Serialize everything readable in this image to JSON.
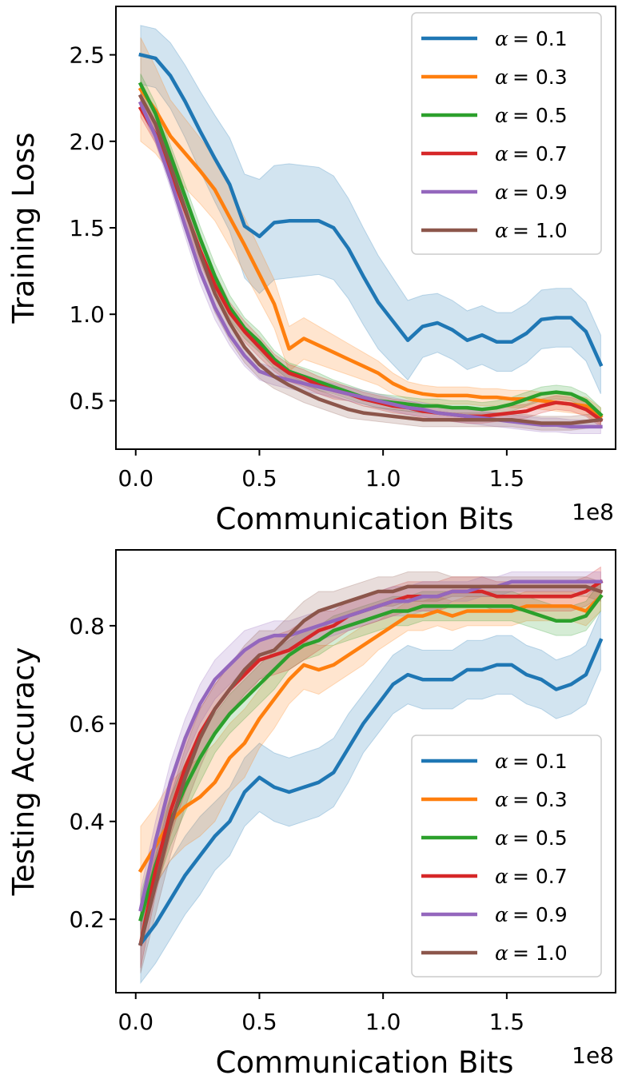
{
  "chart_data": [
    {
      "type": "line",
      "xlabel": "Communication Bits",
      "ylabel": "Training Loss",
      "x_exponent_label": "1e8",
      "xlim": [
        -0.08,
        1.94
      ],
      "ylim": [
        0.22,
        2.78
      ],
      "xticks": [
        0.0,
        0.5,
        1.0,
        1.5
      ],
      "xtick_labels": [
        "0.0",
        "0.5",
        "1.0",
        "1.5"
      ],
      "yticks": [
        0.5,
        1.0,
        1.5,
        2.0,
        2.5
      ],
      "ytick_labels": [
        "0.5",
        "1.0",
        "1.5",
        "2.0",
        "2.5"
      ],
      "legend_position": "upper right",
      "x": [
        0.02,
        0.08,
        0.14,
        0.2,
        0.26,
        0.32,
        0.38,
        0.44,
        0.5,
        0.56,
        0.62,
        0.68,
        0.74,
        0.8,
        0.86,
        0.92,
        0.98,
        1.04,
        1.1,
        1.16,
        1.22,
        1.28,
        1.34,
        1.4,
        1.46,
        1.52,
        1.58,
        1.64,
        1.7,
        1.76,
        1.82,
        1.88
      ],
      "series": [
        {
          "name": "α = 0.1",
          "symbol": "α",
          "label": "= 0.1",
          "color": "#1f77b4",
          "values": [
            2.5,
            2.48,
            2.38,
            2.23,
            2.06,
            1.9,
            1.75,
            1.51,
            1.45,
            1.53,
            1.54,
            1.54,
            1.54,
            1.5,
            1.38,
            1.22,
            1.07,
            0.96,
            0.85,
            0.93,
            0.95,
            0.91,
            0.85,
            0.88,
            0.84,
            0.84,
            0.89,
            0.97,
            0.98,
            0.98,
            0.9,
            0.71
          ],
          "band": [
            0.17,
            0.17,
            0.19,
            0.21,
            0.23,
            0.25,
            0.27,
            0.3,
            0.33,
            0.33,
            0.33,
            0.32,
            0.31,
            0.3,
            0.29,
            0.28,
            0.27,
            0.25,
            0.23,
            0.18,
            0.17,
            0.17,
            0.17,
            0.17,
            0.17,
            0.17,
            0.17,
            0.17,
            0.17,
            0.17,
            0.17,
            0.17
          ]
        },
        {
          "name": "α = 0.3",
          "symbol": "α",
          "label": "= 0.3",
          "color": "#ff7f0e",
          "values": [
            2.3,
            2.18,
            2.03,
            1.93,
            1.83,
            1.72,
            1.56,
            1.4,
            1.23,
            1.06,
            0.8,
            0.86,
            0.82,
            0.78,
            0.74,
            0.7,
            0.66,
            0.6,
            0.56,
            0.54,
            0.53,
            0.53,
            0.53,
            0.52,
            0.52,
            0.51,
            0.51,
            0.5,
            0.49,
            0.48,
            0.47,
            0.41
          ],
          "band": [
            0.3,
            0.25,
            0.21,
            0.2,
            0.19,
            0.18,
            0.17,
            0.16,
            0.15,
            0.14,
            0.13,
            0.12,
            0.11,
            0.1,
            0.09,
            0.08,
            0.07,
            0.06,
            0.05,
            0.05,
            0.05,
            0.05,
            0.05,
            0.05,
            0.05,
            0.05,
            0.05,
            0.05,
            0.05,
            0.05,
            0.05,
            0.05
          ]
        },
        {
          "name": "α = 0.5",
          "symbol": "α",
          "label": "= 0.5",
          "color": "#2ca02c",
          "values": [
            2.33,
            2.16,
            1.92,
            1.68,
            1.44,
            1.22,
            1.04,
            0.92,
            0.84,
            0.74,
            0.67,
            0.64,
            0.61,
            0.58,
            0.55,
            0.52,
            0.5,
            0.49,
            0.48,
            0.47,
            0.47,
            0.46,
            0.46,
            0.45,
            0.46,
            0.48,
            0.51,
            0.54,
            0.55,
            0.54,
            0.5,
            0.42
          ],
          "band": [
            0.06,
            0.06,
            0.06,
            0.07,
            0.07,
            0.07,
            0.07,
            0.06,
            0.06,
            0.05,
            0.05,
            0.05,
            0.05,
            0.04,
            0.04,
            0.04,
            0.04,
            0.04,
            0.04,
            0.04,
            0.04,
            0.04,
            0.04,
            0.04,
            0.04,
            0.04,
            0.04,
            0.04,
            0.04,
            0.04,
            0.04,
            0.04
          ]
        },
        {
          "name": "α = 0.7",
          "symbol": "α",
          "label": "= 0.7",
          "color": "#d62728",
          "values": [
            2.19,
            2.04,
            1.83,
            1.6,
            1.37,
            1.17,
            1.01,
            0.9,
            0.81,
            0.72,
            0.66,
            0.63,
            0.59,
            0.56,
            0.54,
            0.51,
            0.49,
            0.47,
            0.46,
            0.44,
            0.43,
            0.42,
            0.41,
            0.41,
            0.42,
            0.43,
            0.44,
            0.47,
            0.49,
            0.48,
            0.45,
            0.39
          ],
          "band": [
            0.05,
            0.05,
            0.06,
            0.06,
            0.07,
            0.07,
            0.06,
            0.06,
            0.06,
            0.05,
            0.05,
            0.05,
            0.05,
            0.05,
            0.04,
            0.04,
            0.04,
            0.04,
            0.04,
            0.04,
            0.04,
            0.04,
            0.04,
            0.04,
            0.04,
            0.04,
            0.04,
            0.04,
            0.04,
            0.04,
            0.04,
            0.04
          ]
        },
        {
          "name": "α = 0.9",
          "symbol": "α",
          "label": "= 0.9",
          "color": "#9467bd",
          "values": [
            2.22,
            2.03,
            1.78,
            1.51,
            1.25,
            1.04,
            0.88,
            0.76,
            0.67,
            0.64,
            0.62,
            0.6,
            0.58,
            0.56,
            0.54,
            0.52,
            0.5,
            0.48,
            0.46,
            0.45,
            0.43,
            0.42,
            0.41,
            0.4,
            0.39,
            0.38,
            0.37,
            0.36,
            0.36,
            0.35,
            0.35,
            0.35
          ],
          "band": [
            0.04,
            0.04,
            0.05,
            0.06,
            0.07,
            0.07,
            0.06,
            0.06,
            0.05,
            0.05,
            0.05,
            0.05,
            0.04,
            0.04,
            0.04,
            0.04,
            0.04,
            0.04,
            0.04,
            0.04,
            0.04,
            0.04,
            0.04,
            0.04,
            0.04,
            0.04,
            0.04,
            0.04,
            0.04,
            0.04,
            0.04,
            0.04
          ]
        },
        {
          "name": "α = 1.0",
          "symbol": "α",
          "label": "= 1.0",
          "color": "#8c564b",
          "values": [
            2.26,
            2.1,
            1.86,
            1.61,
            1.35,
            1.12,
            0.95,
            0.81,
            0.71,
            0.64,
            0.59,
            0.55,
            0.51,
            0.48,
            0.45,
            0.43,
            0.42,
            0.41,
            0.4,
            0.39,
            0.39,
            0.39,
            0.39,
            0.39,
            0.39,
            0.39,
            0.38,
            0.37,
            0.37,
            0.37,
            0.38,
            0.39
          ],
          "band": [
            0.08,
            0.08,
            0.09,
            0.1,
            0.11,
            0.11,
            0.1,
            0.09,
            0.08,
            0.07,
            0.06,
            0.06,
            0.05,
            0.05,
            0.05,
            0.04,
            0.04,
            0.04,
            0.04,
            0.04,
            0.04,
            0.04,
            0.04,
            0.04,
            0.04,
            0.04,
            0.04,
            0.04,
            0.04,
            0.04,
            0.04,
            0.04
          ]
        }
      ]
    },
    {
      "type": "line",
      "xlabel": "Communication Bits",
      "ylabel": "Testing Accuracy",
      "x_exponent_label": "1e8",
      "xlim": [
        -0.08,
        1.94
      ],
      "ylim": [
        0.05,
        0.955
      ],
      "xticks": [
        0.0,
        0.5,
        1.0,
        1.5
      ],
      "xtick_labels": [
        "0.0",
        "0.5",
        "1.0",
        "1.5"
      ],
      "yticks": [
        0.2,
        0.4,
        0.6,
        0.8
      ],
      "ytick_labels": [
        "0.2",
        "0.4",
        "0.6",
        "0.8"
      ],
      "legend_position": "lower right",
      "x": [
        0.02,
        0.08,
        0.14,
        0.2,
        0.26,
        0.32,
        0.38,
        0.44,
        0.5,
        0.56,
        0.62,
        0.68,
        0.74,
        0.8,
        0.86,
        0.92,
        0.98,
        1.04,
        1.1,
        1.16,
        1.22,
        1.28,
        1.34,
        1.4,
        1.46,
        1.52,
        1.58,
        1.64,
        1.7,
        1.76,
        1.82,
        1.88
      ],
      "series": [
        {
          "name": "α = 0.1",
          "symbol": "α",
          "label": "= 0.1",
          "color": "#1f77b4",
          "values": [
            0.15,
            0.19,
            0.24,
            0.29,
            0.33,
            0.37,
            0.4,
            0.46,
            0.49,
            0.47,
            0.46,
            0.47,
            0.48,
            0.5,
            0.55,
            0.6,
            0.64,
            0.68,
            0.7,
            0.69,
            0.69,
            0.69,
            0.71,
            0.71,
            0.72,
            0.72,
            0.7,
            0.69,
            0.67,
            0.68,
            0.7,
            0.77
          ],
          "band": [
            0.08,
            0.08,
            0.08,
            0.08,
            0.08,
            0.07,
            0.07,
            0.07,
            0.07,
            0.07,
            0.07,
            0.07,
            0.07,
            0.07,
            0.07,
            0.06,
            0.06,
            0.06,
            0.06,
            0.06,
            0.06,
            0.06,
            0.06,
            0.06,
            0.06,
            0.06,
            0.06,
            0.06,
            0.06,
            0.06,
            0.06,
            0.06
          ]
        },
        {
          "name": "α = 0.3",
          "symbol": "α",
          "label": "= 0.3",
          "color": "#ff7f0e",
          "values": [
            0.3,
            0.35,
            0.4,
            0.43,
            0.45,
            0.48,
            0.53,
            0.56,
            0.61,
            0.65,
            0.69,
            0.72,
            0.71,
            0.72,
            0.74,
            0.76,
            0.78,
            0.8,
            0.82,
            0.82,
            0.83,
            0.82,
            0.83,
            0.83,
            0.83,
            0.83,
            0.84,
            0.84,
            0.84,
            0.84,
            0.83,
            0.86
          ],
          "band": [
            0.09,
            0.08,
            0.08,
            0.08,
            0.08,
            0.08,
            0.07,
            0.07,
            0.06,
            0.06,
            0.05,
            0.05,
            0.05,
            0.04,
            0.04,
            0.04,
            0.03,
            0.03,
            0.03,
            0.03,
            0.03,
            0.03,
            0.03,
            0.03,
            0.03,
            0.03,
            0.03,
            0.03,
            0.03,
            0.03,
            0.03,
            0.03
          ]
        },
        {
          "name": "α = 0.5",
          "symbol": "α",
          "label": "= 0.5",
          "color": "#2ca02c",
          "values": [
            0.2,
            0.31,
            0.4,
            0.47,
            0.53,
            0.58,
            0.62,
            0.65,
            0.68,
            0.71,
            0.74,
            0.76,
            0.77,
            0.79,
            0.8,
            0.81,
            0.82,
            0.83,
            0.83,
            0.84,
            0.84,
            0.84,
            0.84,
            0.84,
            0.84,
            0.84,
            0.83,
            0.82,
            0.81,
            0.81,
            0.82,
            0.86
          ],
          "band": [
            0.05,
            0.05,
            0.05,
            0.05,
            0.05,
            0.04,
            0.04,
            0.04,
            0.04,
            0.04,
            0.03,
            0.03,
            0.03,
            0.03,
            0.03,
            0.03,
            0.03,
            0.03,
            0.03,
            0.03,
            0.03,
            0.03,
            0.03,
            0.03,
            0.03,
            0.03,
            0.03,
            0.03,
            0.03,
            0.03,
            0.03,
            0.03
          ]
        },
        {
          "name": "α = 0.7",
          "symbol": "α",
          "label": "= 0.7",
          "color": "#d62728",
          "values": [
            0.15,
            0.3,
            0.42,
            0.51,
            0.58,
            0.63,
            0.67,
            0.7,
            0.73,
            0.74,
            0.75,
            0.77,
            0.79,
            0.8,
            0.82,
            0.83,
            0.84,
            0.85,
            0.86,
            0.86,
            0.86,
            0.87,
            0.87,
            0.87,
            0.86,
            0.86,
            0.86,
            0.86,
            0.86,
            0.86,
            0.87,
            0.89
          ],
          "band": [
            0.05,
            0.05,
            0.05,
            0.05,
            0.05,
            0.05,
            0.05,
            0.05,
            0.04,
            0.04,
            0.04,
            0.04,
            0.04,
            0.03,
            0.03,
            0.03,
            0.03,
            0.03,
            0.03,
            0.03,
            0.03,
            0.03,
            0.03,
            0.03,
            0.03,
            0.03,
            0.03,
            0.03,
            0.03,
            0.03,
            0.03,
            0.03
          ]
        },
        {
          "name": "α = 0.9",
          "symbol": "α",
          "label": "= 0.9",
          "color": "#9467bd",
          "values": [
            0.22,
            0.36,
            0.48,
            0.57,
            0.64,
            0.69,
            0.72,
            0.75,
            0.77,
            0.78,
            0.78,
            0.79,
            0.8,
            0.81,
            0.82,
            0.83,
            0.84,
            0.85,
            0.85,
            0.86,
            0.86,
            0.87,
            0.87,
            0.88,
            0.88,
            0.89,
            0.89,
            0.89,
            0.89,
            0.89,
            0.89,
            0.89
          ],
          "band": [
            0.04,
            0.04,
            0.04,
            0.04,
            0.04,
            0.04,
            0.04,
            0.04,
            0.03,
            0.03,
            0.03,
            0.03,
            0.03,
            0.03,
            0.03,
            0.03,
            0.03,
            0.03,
            0.03,
            0.03,
            0.03,
            0.02,
            0.02,
            0.02,
            0.02,
            0.02,
            0.02,
            0.02,
            0.02,
            0.02,
            0.02,
            0.02
          ]
        },
        {
          "name": "α = 1.0",
          "symbol": "α",
          "label": "= 1.0",
          "color": "#8c564b",
          "values": [
            0.15,
            0.27,
            0.39,
            0.49,
            0.57,
            0.63,
            0.67,
            0.71,
            0.74,
            0.75,
            0.78,
            0.81,
            0.83,
            0.84,
            0.85,
            0.86,
            0.87,
            0.87,
            0.88,
            0.88,
            0.88,
            0.88,
            0.88,
            0.88,
            0.88,
            0.88,
            0.88,
            0.88,
            0.88,
            0.88,
            0.88,
            0.87
          ],
          "band": [
            0.06,
            0.06,
            0.06,
            0.06,
            0.06,
            0.05,
            0.05,
            0.05,
            0.05,
            0.04,
            0.04,
            0.04,
            0.04,
            0.03,
            0.03,
            0.03,
            0.03,
            0.03,
            0.03,
            0.03,
            0.03,
            0.02,
            0.02,
            0.02,
            0.02,
            0.02,
            0.02,
            0.02,
            0.02,
            0.02,
            0.02,
            0.02
          ]
        }
      ]
    }
  ]
}
